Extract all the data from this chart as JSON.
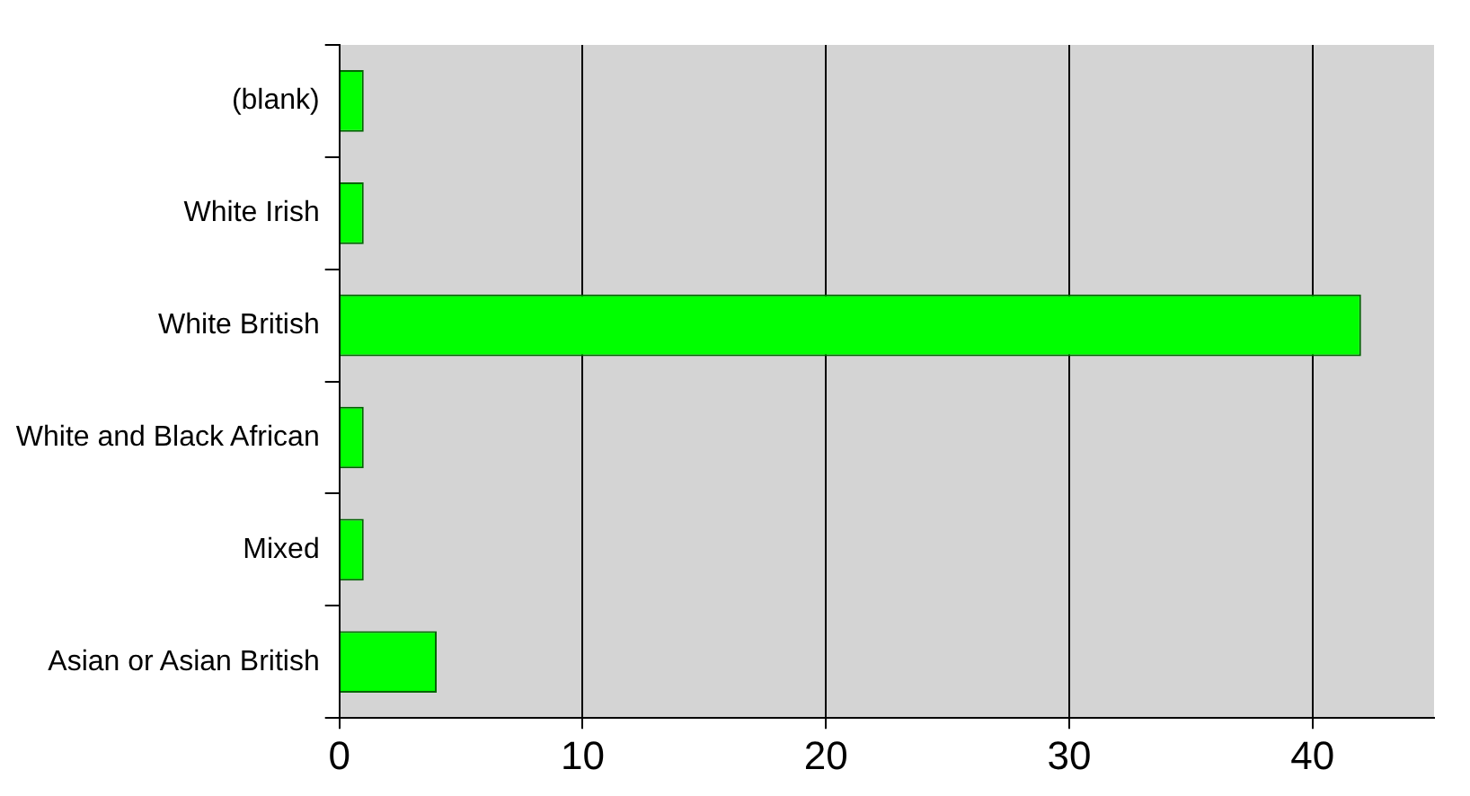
{
  "chart_data": {
    "type": "bar",
    "orientation": "horizontal",
    "categories": [
      "(blank)",
      "White Irish",
      "White British",
      "White and Black African",
      "Mixed",
      "Asian or Asian British"
    ],
    "values": [
      1,
      1,
      42,
      1,
      1,
      4
    ],
    "color": "#00ff00",
    "xlim": [
      0,
      45
    ],
    "xticks": [
      0,
      10,
      20,
      30,
      40
    ],
    "grid": "x",
    "legend": false
  }
}
